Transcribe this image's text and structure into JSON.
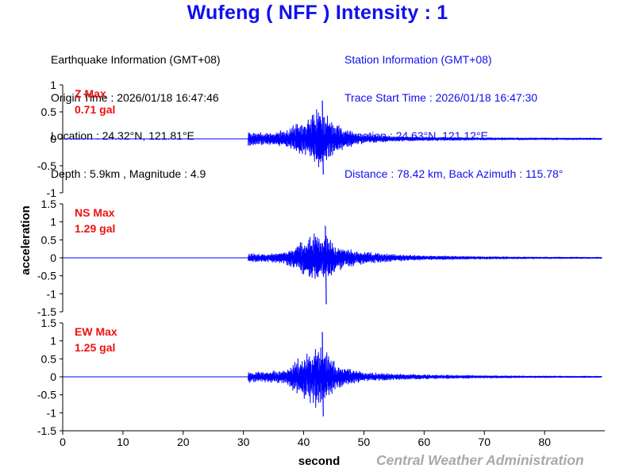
{
  "header": {
    "title": "Wufeng ( NFF ) Intensity : 1",
    "earthquake": {
      "heading": "Earthquake Information (GMT+08)",
      "origin_time": "Origin Time : 2026/01/18 16:47:46",
      "location": "Location : 24.32°N, 121.81°E",
      "depth_magnitude": "Depth : 5.9km , Magnitude : 4.9"
    },
    "station": {
      "heading": "Station Information (GMT+08)",
      "trace_start": "Trace Start Time : 2026/01/18 16:47:30",
      "location": "Location : 24.63°N, 121.12°E",
      "distance": "Distance : 78.42 km, Back Azimuth : 115.78°"
    }
  },
  "footer": {
    "agency": "Central Weather Administration"
  },
  "colors": {
    "trace": "#0000ff",
    "label": "#ee1111",
    "title": "#1010ee",
    "axis": "#000000"
  },
  "chart_data": {
    "type": "line",
    "xlabel": "second",
    "ylabel": "acceleration",
    "xlim": [
      0,
      90
    ],
    "xticks": [
      "0",
      "10",
      "20",
      "30",
      "40",
      "50",
      "60",
      "70",
      "80"
    ],
    "grid": false,
    "panels": [
      {
        "component": "Z",
        "label": "Z Max",
        "max_label": "0.71 gal",
        "max": 0.71,
        "ylim": [
          -1,
          1
        ],
        "yticks": [
          "1",
          "0.5",
          "0",
          "-0.5",
          "-1"
        ],
        "trace": {
          "flat_until": 30.8,
          "peak_time": 43.1,
          "peak_pos": 0.71,
          "peak_neg": -0.66,
          "envelope_time": [
            30.8,
            31.5,
            34,
            37,
            39,
            41,
            42.5,
            43.5,
            45,
            47,
            50,
            55,
            60,
            70,
            80,
            90
          ],
          "envelope_amp": [
            0.12,
            0.1,
            0.1,
            0.13,
            0.24,
            0.34,
            0.5,
            0.42,
            0.25,
            0.14,
            0.07,
            0.04,
            0.03,
            0.018,
            0.015,
            0.012
          ]
        }
      },
      {
        "component": "NS",
        "label": "NS Max",
        "max_label": "1.29 gal",
        "max": 1.29,
        "ylim": [
          -1.5,
          1.5
        ],
        "yticks": [
          "1.5",
          "1",
          "0.5",
          "0",
          "-0.5",
          "-1",
          "-1.5"
        ],
        "trace": {
          "flat_until": 30.8,
          "peak_time": 43.6,
          "peak_pos": 0.89,
          "peak_neg": -1.29,
          "envelope_time": [
            30.8,
            31.5,
            34,
            37,
            39,
            41,
            42.5,
            43.5,
            45,
            47,
            50,
            55,
            60,
            70,
            80,
            90
          ],
          "envelope_amp": [
            0.1,
            0.09,
            0.1,
            0.14,
            0.32,
            0.48,
            0.62,
            0.55,
            0.36,
            0.22,
            0.14,
            0.08,
            0.05,
            0.03,
            0.02,
            0.015
          ]
        }
      },
      {
        "component": "EW",
        "label": "EW Max",
        "max_label": "1.25 gal",
        "max": 1.25,
        "ylim": [
          -1.5,
          1.5
        ],
        "yticks": [
          "1.5",
          "1",
          "0.5",
          "0",
          "-0.5",
          "-1",
          "-1.5"
        ],
        "trace": {
          "flat_until": 30.8,
          "peak_time": 43.1,
          "peak_pos": 1.25,
          "peak_neg": -1.1,
          "envelope_time": [
            30.8,
            31.5,
            34,
            37,
            39,
            41,
            42.5,
            43.5,
            45,
            47,
            50,
            55,
            60,
            70,
            80,
            90
          ],
          "envelope_amp": [
            0.15,
            0.12,
            0.12,
            0.16,
            0.42,
            0.6,
            0.8,
            0.62,
            0.36,
            0.2,
            0.11,
            0.07,
            0.05,
            0.03,
            0.02,
            0.015
          ]
        }
      }
    ]
  }
}
